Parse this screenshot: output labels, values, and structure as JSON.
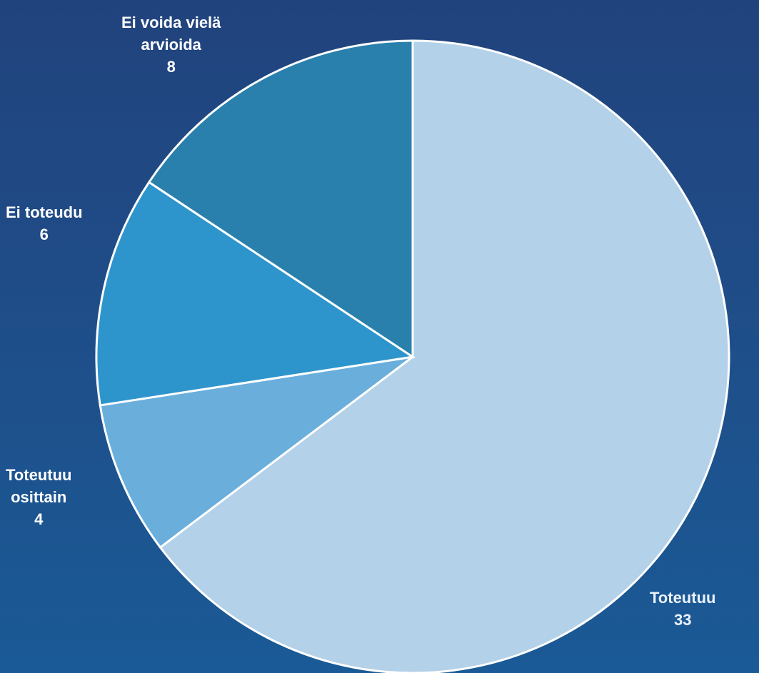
{
  "chart_data": {
    "type": "pie",
    "title": "",
    "slices": [
      {
        "label": "Toteutuu",
        "value": 33,
        "color": "#b3d1e8"
      },
      {
        "label": "Toteutuu osittain",
        "value": 4,
        "color": "#6aaedc"
      },
      {
        "label": "Ei toteudu",
        "value": 6,
        "color": "#2e95cc"
      },
      {
        "label": "Ei voida vielä arvioida",
        "value": 8,
        "color": "#2980ac"
      }
    ],
    "start_angle_deg": 0,
    "direction": "clockwise",
    "legend": "none",
    "data_labels": "outside, category name and value"
  },
  "labels": {
    "toteutuu": {
      "text": "Toteutuu",
      "value": "33"
    },
    "toteutuu_osittain": {
      "text_line1": "Toteutuu",
      "text_line2": "osittain",
      "value": "4"
    },
    "ei_toteudu": {
      "text": "Ei toteudu",
      "value": "6"
    },
    "ei_voida": {
      "text_line1": "Ei voida vielä",
      "text_line2": "arvioida",
      "value": "8"
    }
  },
  "colors": {
    "background_top": "#21437d",
    "background_bottom": "#1a5a96",
    "slice_border": "#ffffff",
    "label_text": "#ffffff"
  }
}
